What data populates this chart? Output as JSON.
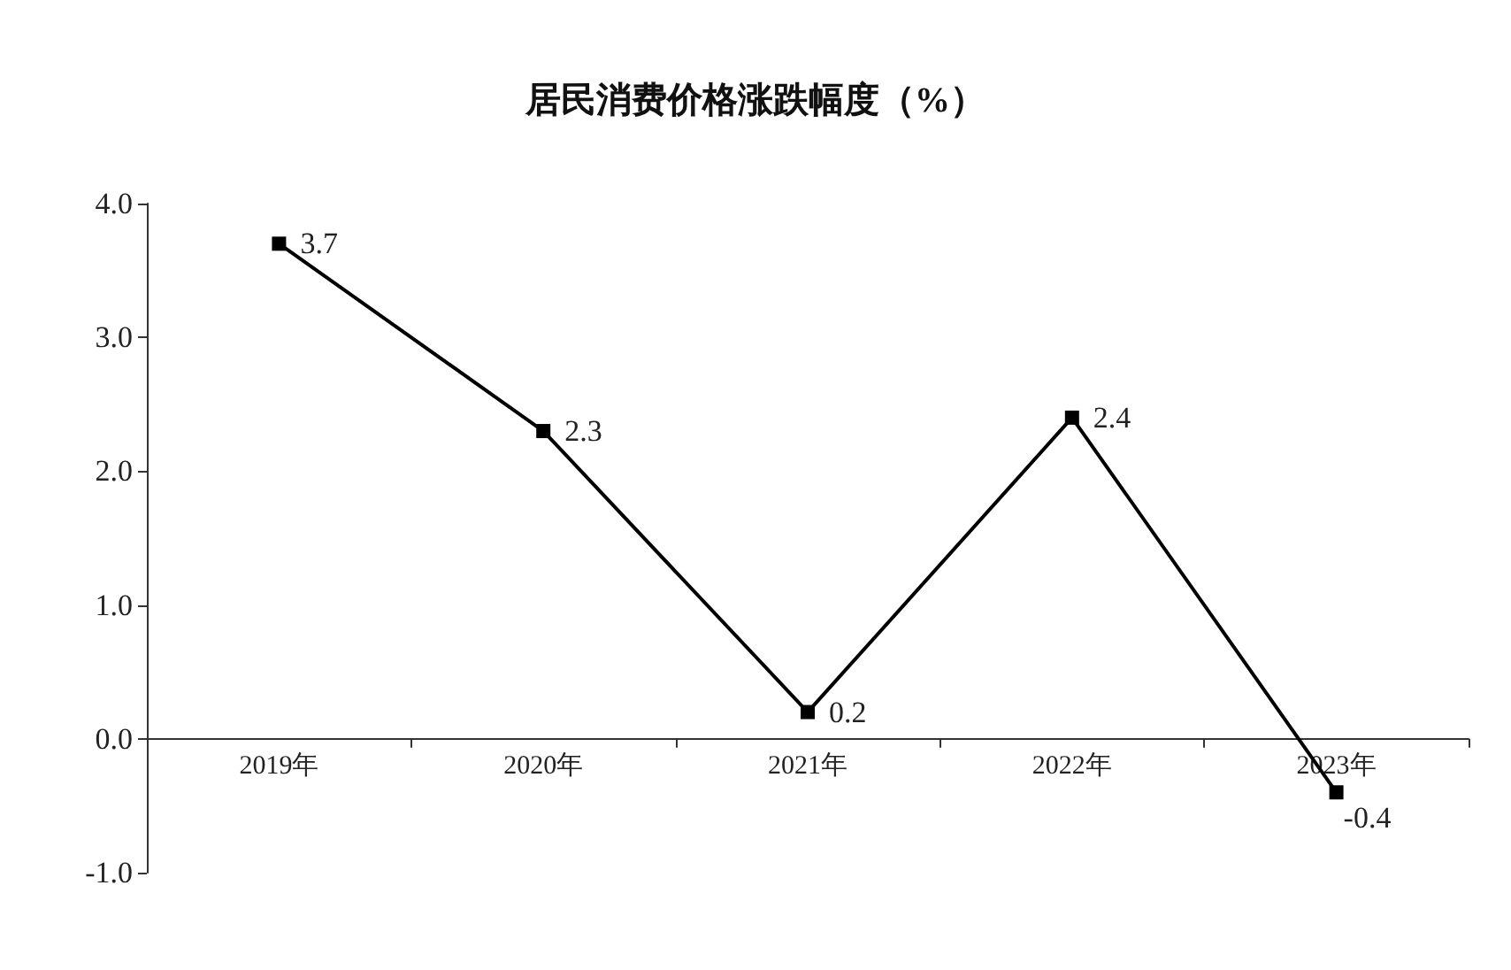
{
  "chart_data": {
    "type": "line",
    "title": "居民消费价格涨跌幅度（%）",
    "categories": [
      "2019年",
      "2020年",
      "2021年",
      "2022年",
      "2023年"
    ],
    "series": [
      {
        "color": "#000000",
        "values": [
          3.7,
          2.3,
          0.2,
          2.4,
          -0.4
        ]
      }
    ],
    "ylim": [
      -1,
      4
    ],
    "yticks": [
      {
        "value": -1,
        "label": "-1.0"
      },
      {
        "value": 0,
        "label": "0.0"
      },
      {
        "value": 1,
        "label": "1.0"
      },
      {
        "value": 2,
        "label": "2.0"
      },
      {
        "value": 3,
        "label": "3.0"
      },
      {
        "value": 4,
        "label": "4.0"
      }
    ],
    "data_labels": true,
    "marker": "square",
    "line_style": "solid"
  }
}
